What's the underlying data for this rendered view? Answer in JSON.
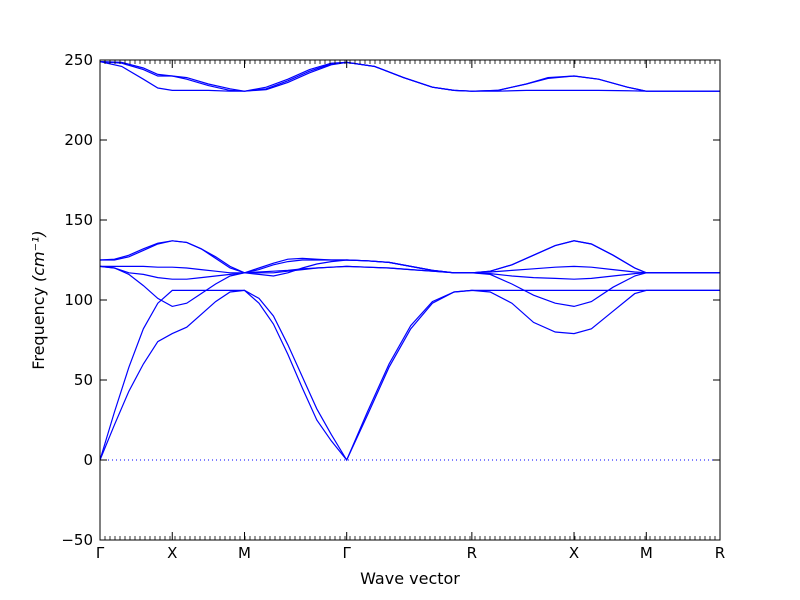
{
  "chart_data": {
    "type": "line",
    "title": "",
    "xlabel": "Wave vector",
    "ylabel": "Frequency",
    "ylabel_unit": "(cm⁻¹)",
    "ylim": [
      -50,
      250
    ],
    "yticks": [
      -50,
      0,
      50,
      100,
      150,
      200,
      250
    ],
    "xlim": [
      0,
      8.58
    ],
    "high_symmetry_points": [
      {
        "label": "Γ",
        "x": 0.0
      },
      {
        "label": "X",
        "x": 1.0
      },
      {
        "label": "M",
        "x": 2.0
      },
      {
        "label": "Γ",
        "x": 3.414
      },
      {
        "label": "R",
        "x": 5.146
      },
      {
        "label": "X",
        "x": 6.56
      },
      {
        "label": "M",
        "x": 7.56
      },
      {
        "label": "R",
        "x": 8.58
      }
    ],
    "zero_line": {
      "y": 0,
      "style": "dotted"
    },
    "series_color": "#0000ff",
    "series": [
      {
        "x": [
          0,
          0.2,
          0.4,
          0.6,
          0.8,
          1.0,
          1.2,
          1.4,
          1.6,
          1.8,
          2.0,
          2.2,
          2.4,
          2.6,
          2.8,
          3.0,
          3.2,
          3.414,
          3.7,
          4.0,
          4.3,
          4.6,
          4.9,
          5.146,
          5.4,
          5.7,
          6.0,
          6.3,
          6.56,
          6.8,
          7.1,
          7.4,
          7.56,
          7.9,
          8.2,
          8.58
        ],
        "y": [
          0,
          22,
          43,
          60,
          74,
          79,
          83,
          91,
          99,
          105,
          106,
          98,
          85,
          66,
          45,
          25,
          12,
          0,
          28,
          58,
          82,
          98,
          105,
          106,
          105,
          98,
          86,
          80,
          79,
          82,
          93,
          104,
          106,
          106,
          106,
          106
        ]
      },
      {
        "x": [
          0,
          0.2,
          0.4,
          0.6,
          0.8,
          1.0,
          1.2,
          1.4,
          1.6,
          1.8,
          2.0,
          2.2,
          2.4,
          2.6,
          2.8,
          3.0,
          3.2,
          3.414,
          3.7,
          4.0,
          4.3,
          4.6,
          4.9,
          5.146,
          5.4,
          5.7,
          6.0,
          6.3,
          6.56,
          6.8,
          7.1,
          7.4,
          7.56,
          7.9,
          8.2,
          8.58
        ],
        "y": [
          0,
          30,
          58,
          82,
          98,
          106,
          106,
          106,
          106,
          106,
          106,
          101,
          90,
          72,
          52,
          32,
          16,
          0,
          30,
          60,
          84,
          99,
          105,
          106,
          106,
          106,
          106,
          106,
          106,
          106,
          106,
          106,
          106,
          106,
          106,
          106
        ]
      },
      {
        "x": [
          0,
          0.2,
          0.4,
          0.6,
          0.8,
          1.0,
          1.2,
          1.4,
          1.6,
          1.8,
          2.0,
          2.2,
          2.4,
          2.6,
          2.8,
          3.0,
          3.2,
          3.414,
          3.7,
          4.0,
          4.3,
          4.6,
          4.9,
          5.146,
          5.4,
          5.7,
          6.0,
          6.3,
          6.56,
          6.8,
          7.1,
          7.4,
          7.56,
          7.9,
          8.2,
          8.58
        ],
        "y": [
          121,
          120,
          116,
          109,
          101,
          96,
          98,
          104,
          110,
          115,
          117,
          117,
          117,
          118,
          119,
          120,
          120.5,
          121,
          120.5,
          120,
          119,
          118,
          117,
          117,
          116,
          110,
          103,
          98,
          96,
          99,
          108,
          115,
          117,
          117,
          117,
          117
        ]
      },
      {
        "x": [
          0,
          0.2,
          0.4,
          0.6,
          0.8,
          1.0,
          1.2,
          1.4,
          1.6,
          1.8,
          2.0,
          2.2,
          2.4,
          2.6,
          2.8,
          3.0,
          3.2,
          3.414,
          3.7,
          4.0,
          4.3,
          4.6,
          4.9,
          5.146,
          5.4,
          5.7,
          6.0,
          6.3,
          6.56,
          6.8,
          7.1,
          7.4,
          7.56,
          7.9,
          8.2,
          8.58
        ],
        "y": [
          121,
          120,
          117,
          116,
          114,
          113,
          113,
          114,
          115,
          116,
          117,
          117.5,
          118,
          118.5,
          119.5,
          120,
          120.5,
          121,
          120.5,
          120,
          119,
          118,
          117,
          117,
          116.5,
          115,
          114,
          113.5,
          113,
          113.5,
          115,
          116.5,
          117,
          117,
          117,
          117
        ]
      },
      {
        "x": [
          0,
          0.2,
          0.4,
          0.6,
          0.8,
          1.0,
          1.2,
          1.4,
          1.6,
          1.8,
          2.0,
          2.2,
          2.4,
          2.6,
          2.8,
          3.0,
          3.2,
          3.414,
          3.7,
          4.0,
          4.3,
          4.6,
          4.9,
          5.146,
          5.4,
          5.7,
          6.0,
          6.3,
          6.56,
          6.8,
          7.1,
          7.4,
          7.56,
          7.9,
          8.2,
          8.58
        ],
        "y": [
          121,
          121,
          121,
          121,
          120.5,
          120.5,
          120,
          119,
          118,
          117,
          117,
          116,
          115,
          117,
          120,
          122.5,
          124,
          125,
          124.5,
          123.5,
          121,
          118.5,
          117,
          117,
          117.5,
          118.5,
          119.5,
          120.5,
          121,
          120.5,
          119,
          117.5,
          117,
          117,
          117,
          117
        ]
      },
      {
        "x": [
          0,
          0.2,
          0.4,
          0.6,
          0.8,
          1.0,
          1.2,
          1.4,
          1.6,
          1.8,
          2.0,
          2.2,
          2.4,
          2.6,
          2.8,
          3.0,
          3.2,
          3.414,
          3.7,
          4.0,
          4.3,
          4.6,
          4.9,
          5.146,
          5.4,
          5.7,
          6.0,
          6.3,
          6.56,
          6.8,
          7.1,
          7.4,
          7.56,
          7.9,
          8.2,
          8.58
        ],
        "y": [
          125,
          125,
          127,
          131,
          135,
          137,
          136,
          132,
          126,
          120,
          117,
          119,
          122,
          124,
          125,
          125,
          125,
          125,
          124.5,
          123.5,
          121,
          118.5,
          117,
          117,
          118,
          122,
          128,
          134,
          137,
          135,
          128,
          120,
          117,
          117,
          117,
          117
        ]
      },
      {
        "x": [
          0,
          0.2,
          0.4,
          0.6,
          0.8,
          1.0,
          1.2,
          1.4,
          1.6,
          1.8,
          2.0,
          2.2,
          2.4,
          2.6,
          2.8,
          3.0,
          3.2,
          3.414,
          3.7,
          4.0,
          4.3,
          4.6,
          4.9,
          5.146,
          5.4,
          5.7,
          6.0,
          6.3,
          6.56,
          6.8,
          7.1,
          7.4,
          7.56,
          7.9,
          8.2,
          8.58
        ],
        "y": [
          125,
          125.5,
          128,
          132,
          135.5,
          137,
          136,
          132,
          127,
          121,
          117,
          120,
          123,
          125.5,
          126,
          125.5,
          125,
          125,
          124.5,
          123.5,
          121,
          118.5,
          117,
          117,
          118,
          122,
          128,
          134,
          137,
          135,
          128,
          120,
          117,
          117,
          117,
          117
        ]
      },
      {
        "x": [
          0,
          0.3,
          0.6,
          0.8,
          1.0,
          1.2,
          1.5,
          1.8,
          2.0,
          2.3,
          2.6,
          2.9,
          3.2,
          3.414,
          3.8,
          4.2,
          4.6,
          4.9,
          5.146,
          5.5,
          5.9,
          6.2,
          6.56,
          6.9,
          7.3,
          7.56,
          8.0,
          8.58
        ],
        "y": [
          249,
          248,
          244,
          240,
          240,
          238,
          234,
          231,
          230.5,
          232,
          237,
          243,
          247.5,
          248.5,
          246,
          239,
          233,
          231,
          230.5,
          231,
          235,
          239,
          240,
          238,
          233,
          230.5,
          230.5,
          230.5
        ]
      },
      {
        "x": [
          0,
          0.3,
          0.6,
          0.8,
          1.0,
          1.2,
          1.5,
          1.8,
          2.0,
          2.3,
          2.6,
          2.9,
          3.2,
          3.414,
          3.8,
          4.2,
          4.6,
          4.9,
          5.146,
          5.5,
          5.9,
          6.2,
          6.56,
          6.9,
          7.3,
          7.56,
          8.0,
          8.58
        ],
        "y": [
          249,
          246,
          238,
          232.5,
          231,
          231,
          231,
          230.5,
          230.5,
          231.5,
          236,
          242,
          247,
          248.5,
          246,
          239,
          233,
          231,
          230.5,
          230.5,
          231,
          231,
          231,
          231,
          230.8,
          230.5,
          230.5,
          230.5
        ]
      },
      {
        "x": [
          0,
          0.3,
          0.6,
          0.8,
          1.0,
          1.2,
          1.5,
          1.8,
          2.0,
          2.3,
          2.6,
          2.9,
          3.2,
          3.414,
          3.8,
          4.2,
          4.6,
          4.9,
          5.146,
          5.5,
          5.9,
          6.2,
          6.56,
          6.9,
          7.3,
          7.56,
          8.0,
          8.58
        ],
        "y": [
          249,
          248.5,
          245,
          241,
          240,
          239,
          235,
          232,
          230.5,
          233,
          238,
          244,
          248,
          248.5,
          246,
          239,
          233,
          231,
          230.5,
          231,
          235,
          238.5,
          240,
          238,
          233,
          230.5,
          230.5,
          230.5
        ]
      }
    ]
  }
}
